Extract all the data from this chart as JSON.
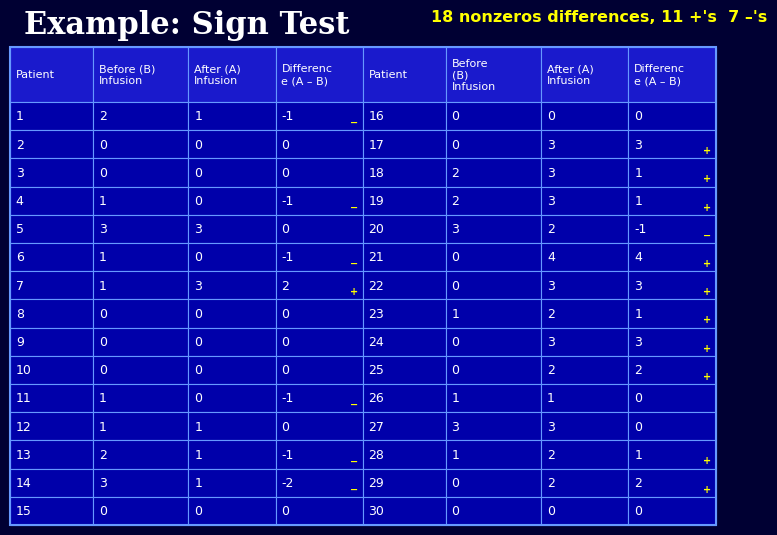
{
  "title": "Example: Sign Test",
  "subtitle": "18 nonzeros differences, 11 +'s  7 –'s",
  "title_color": "#FFFFFF",
  "subtitle_color": "#FFFF00",
  "bg_color": "#000033",
  "table_bg": "#0000AA",
  "header_bg": "#0000CC",
  "text_color": "#FFFFFF",
  "border_color": "#6699FF",
  "col_headers": [
    "Patient",
    "Before (B)\nInfusion",
    "After (A)\nInfusion",
    "Differenc\ne (A – B)",
    "Patient",
    "Before\n(B)\nInfusion",
    "After (A)\nInfusion",
    "Differenc\ne (A – B)"
  ],
  "rows": [
    [
      1,
      2,
      1,
      -1,
      16,
      0,
      0,
      0
    ],
    [
      2,
      0,
      0,
      0,
      17,
      0,
      3,
      3
    ],
    [
      3,
      0,
      0,
      0,
      18,
      2,
      3,
      1
    ],
    [
      4,
      1,
      0,
      -1,
      19,
      2,
      3,
      1
    ],
    [
      5,
      3,
      3,
      0,
      20,
      3,
      2,
      -1
    ],
    [
      6,
      1,
      0,
      -1,
      21,
      0,
      4,
      4
    ],
    [
      7,
      1,
      3,
      2,
      22,
      0,
      3,
      3
    ],
    [
      8,
      0,
      0,
      0,
      23,
      1,
      2,
      1
    ],
    [
      9,
      0,
      0,
      0,
      24,
      0,
      3,
      3
    ],
    [
      10,
      0,
      0,
      0,
      25,
      0,
      2,
      2
    ],
    [
      11,
      1,
      0,
      -1,
      26,
      1,
      1,
      0
    ],
    [
      12,
      1,
      1,
      0,
      27,
      3,
      3,
      0
    ],
    [
      13,
      2,
      1,
      -1,
      28,
      1,
      2,
      1
    ],
    [
      14,
      3,
      1,
      -2,
      29,
      0,
      2,
      2
    ],
    [
      15,
      0,
      0,
      0,
      30,
      0,
      0,
      0
    ]
  ]
}
